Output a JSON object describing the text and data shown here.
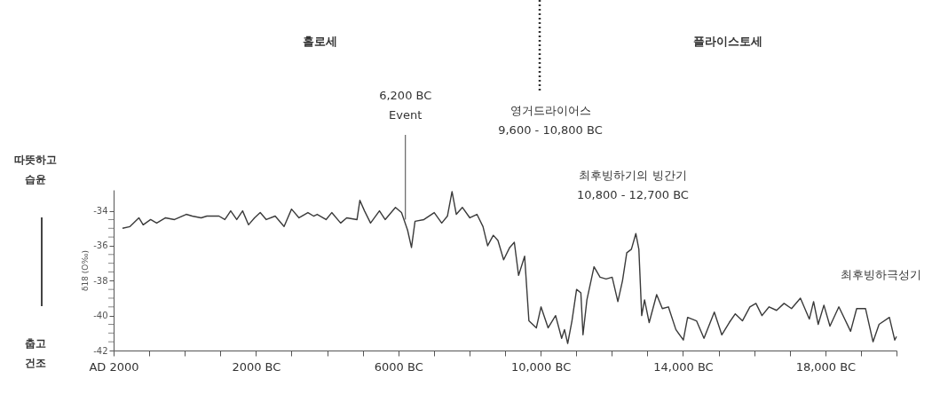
{
  "chart_data": {
    "type": "line",
    "ylabel": "δ18 (O‰)",
    "color": "#3a3a3a",
    "line_style": "solid",
    "grid": false,
    "xlim": [
      -2000,
      20000
    ],
    "xticks": [
      {
        "value": -2000,
        "label": "AD 2000"
      },
      {
        "value": -1000,
        "label": null
      },
      {
        "value": 0,
        "label": null
      },
      {
        "value": 1000,
        "label": null
      },
      {
        "value": 2000,
        "label": "2000 BC"
      },
      {
        "value": 3000,
        "label": null
      },
      {
        "value": 4000,
        "label": null
      },
      {
        "value": 5000,
        "label": null
      },
      {
        "value": 6000,
        "label": "6000 BC"
      },
      {
        "value": 7000,
        "label": null
      },
      {
        "value": 8000,
        "label": null
      },
      {
        "value": 9000,
        "label": null
      },
      {
        "value": 10000,
        "label": "10,000 BC"
      },
      {
        "value": 11000,
        "label": null
      },
      {
        "value": 12000,
        "label": null
      },
      {
        "value": 13000,
        "label": null
      },
      {
        "value": 14000,
        "label": "14,000 BC"
      },
      {
        "value": 15000,
        "label": null
      },
      {
        "value": 16000,
        "label": null
      },
      {
        "value": 17000,
        "label": null
      },
      {
        "value": 18000,
        "label": "18,000 BC"
      },
      {
        "value": 19000,
        "label": null
      },
      {
        "value": 20000,
        "label": null
      }
    ],
    "ylim": [
      -42,
      -32.8
    ],
    "yticks": [
      -42,
      {
        "value": -41.5,
        "label": null
      },
      {
        "value": -41,
        "label": null
      },
      {
        "value": -40.5,
        "label": null
      },
      -40,
      {
        "value": -39.5,
        "label": null
      },
      {
        "value": -39,
        "label": null
      },
      {
        "value": -38.5,
        "label": null
      },
      -38,
      {
        "value": -37.5,
        "label": null
      },
      {
        "value": -37,
        "label": null
      },
      {
        "value": -36.5,
        "label": null
      },
      -36,
      {
        "value": -35.5,
        "label": null
      },
      {
        "value": -35,
        "label": null
      },
      {
        "value": -34.5,
        "label": null
      },
      -34
    ],
    "x": [
      -1750,
      -1540,
      -1290,
      -1170,
      -960,
      -790,
      -540,
      -290,
      40,
      210,
      460,
      620,
      960,
      1125,
      1290,
      1460,
      1625,
      1790,
      1960,
      2120,
      2290,
      2540,
      2790,
      3000,
      3210,
      3460,
      3620,
      3720,
      3970,
      4130,
      4380,
      4550,
      4840,
      4920,
      5050,
      5220,
      5470,
      5630,
      5920,
      6090,
      6260,
      6370,
      6470,
      6720,
      7010,
      7220,
      7380,
      7510,
      7630,
      7800,
      8010,
      8210,
      8380,
      8510,
      8670,
      8800,
      8960,
      9130,
      9260,
      9380,
      9550,
      9670,
      9880,
      10010,
      10210,
      10420,
      10590,
      10670,
      10760,
      10880,
      11010,
      11130,
      11190,
      11300,
      11500,
      11670,
      11840,
      12010,
      12170,
      12300,
      12420,
      12550,
      12675,
      12760,
      12840,
      12920,
      13050,
      13260,
      13420,
      13590,
      13800,
      14010,
      14130,
      14380,
      14590,
      14880,
      15090,
      15300,
      15470,
      15670,
      15880,
      16050,
      16220,
      16420,
      16630,
      16840,
      17050,
      17300,
      17550,
      17670,
      17800,
      17960,
      18130,
      18380,
      18710,
      18880,
      19130,
      19340,
      19510,
      19800,
      19950,
      20000
    ],
    "values": [
      -35.0,
      -34.9,
      -34.4,
      -34.8,
      -34.5,
      -34.7,
      -34.4,
      -34.5,
      -34.2,
      -34.3,
      -34.4,
      -34.3,
      -34.3,
      -34.5,
      -34.0,
      -34.5,
      -34.0,
      -34.8,
      -34.4,
      -34.1,
      -34.5,
      -34.3,
      -34.9,
      -33.9,
      -34.4,
      -34.1,
      -34.3,
      -34.2,
      -34.5,
      -34.1,
      -34.7,
      -34.4,
      -34.5,
      -33.4,
      -34.0,
      -34.7,
      -34.0,
      -34.5,
      -33.8,
      -34.1,
      -35.1,
      -36.1,
      -34.6,
      -34.5,
      -34.1,
      -34.7,
      -34.3,
      -32.9,
      -34.2,
      -33.8,
      -34.4,
      -34.2,
      -34.9,
      -36.0,
      -35.4,
      -35.7,
      -36.8,
      -36.1,
      -35.8,
      -37.7,
      -36.6,
      -40.3,
      -40.7,
      -39.5,
      -40.7,
      -40.0,
      -41.3,
      -40.8,
      -41.6,
      -40.3,
      -38.5,
      -38.7,
      -41.1,
      -39.1,
      -37.2,
      -37.8,
      -37.9,
      -37.8,
      -39.2,
      -38.0,
      -36.4,
      -36.2,
      -35.3,
      -36.2,
      -40.0,
      -39.1,
      -40.4,
      -38.8,
      -39.6,
      -39.5,
      -40.8,
      -41.4,
      -40.1,
      -40.3,
      -41.3,
      -39.8,
      -41.1,
      -40.4,
      -39.9,
      -40.3,
      -39.5,
      -39.3,
      -40.0,
      -39.5,
      -39.7,
      -39.3,
      -39.6,
      -39.0,
      -40.2,
      -39.2,
      -40.5,
      -39.4,
      -40.6,
      -39.5,
      -40.9,
      -39.6,
      -39.6,
      -41.5,
      -40.5,
      -40.1,
      -41.4,
      -41.2
    ],
    "annotations": [
      "홀로세",
      "플라이스토세",
      {
        "text": "6,200 BC\nEvent",
        "x": 6200,
        "y": -34.5
      },
      "영거드라이어스\n9,600 - 10,800 BC",
      "최후빙하기의 빙간기\n10,800 - 12,700 BC",
      "최후빙하극성기",
      "따뜻하고\n습윤",
      "춥고\n건조"
    ]
  }
}
